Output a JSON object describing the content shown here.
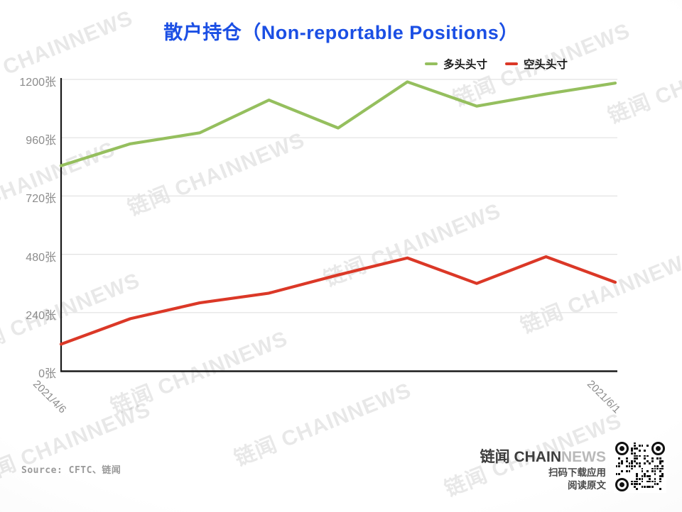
{
  "title": "散户持仓（Non-reportable Positions）",
  "legend": [
    {
      "label": "多头头寸",
      "color": "#95bf5e"
    },
    {
      "label": "空头头寸",
      "color": "#db3827"
    }
  ],
  "chart_data": {
    "type": "line",
    "x": [
      "2021/4/6",
      "2021/4/13",
      "2021/4/20",
      "2021/4/27",
      "2021/5/4",
      "2021/5/11",
      "2021/5/18",
      "2021/5/25",
      "2021/6/1"
    ],
    "x_shown": [
      0,
      8
    ],
    "series": [
      {
        "name": "多头头寸",
        "color": "#95bf5e",
        "values": [
          845,
          935,
          980,
          1115,
          1000,
          1190,
          1090,
          1140,
          1185
        ]
      },
      {
        "name": "空头头寸",
        "color": "#db3827",
        "values": [
          110,
          215,
          280,
          320,
          395,
          465,
          360,
          470,
          365
        ]
      }
    ],
    "title": "散户持仓（Non-reportable Positions）",
    "xlabel": "",
    "ylabel": "",
    "ylim": [
      0,
      1200
    ],
    "yticks": [
      0,
      240,
      480,
      720,
      960,
      1200
    ],
    "ytick_suffix": "张",
    "grid": true,
    "legend_position": "top-right",
    "unit": "张 (contracts)"
  },
  "colors": {
    "title": "#1b4fe4",
    "grid": "#e2e2e2",
    "axis": "#1a1a1a",
    "tick_text": "#8c8c8c"
  },
  "source": "Source: CFTC、链闻",
  "footer": {
    "brand_cn": "链闻 ",
    "brand_en_dark": "CHAIN",
    "brand_en_light": "NEWS",
    "line1": "扫码下载应用",
    "line2": "阅读原文",
    "qr_icon": "qr-code"
  },
  "watermark": "链闻 CHAINNEWS"
}
